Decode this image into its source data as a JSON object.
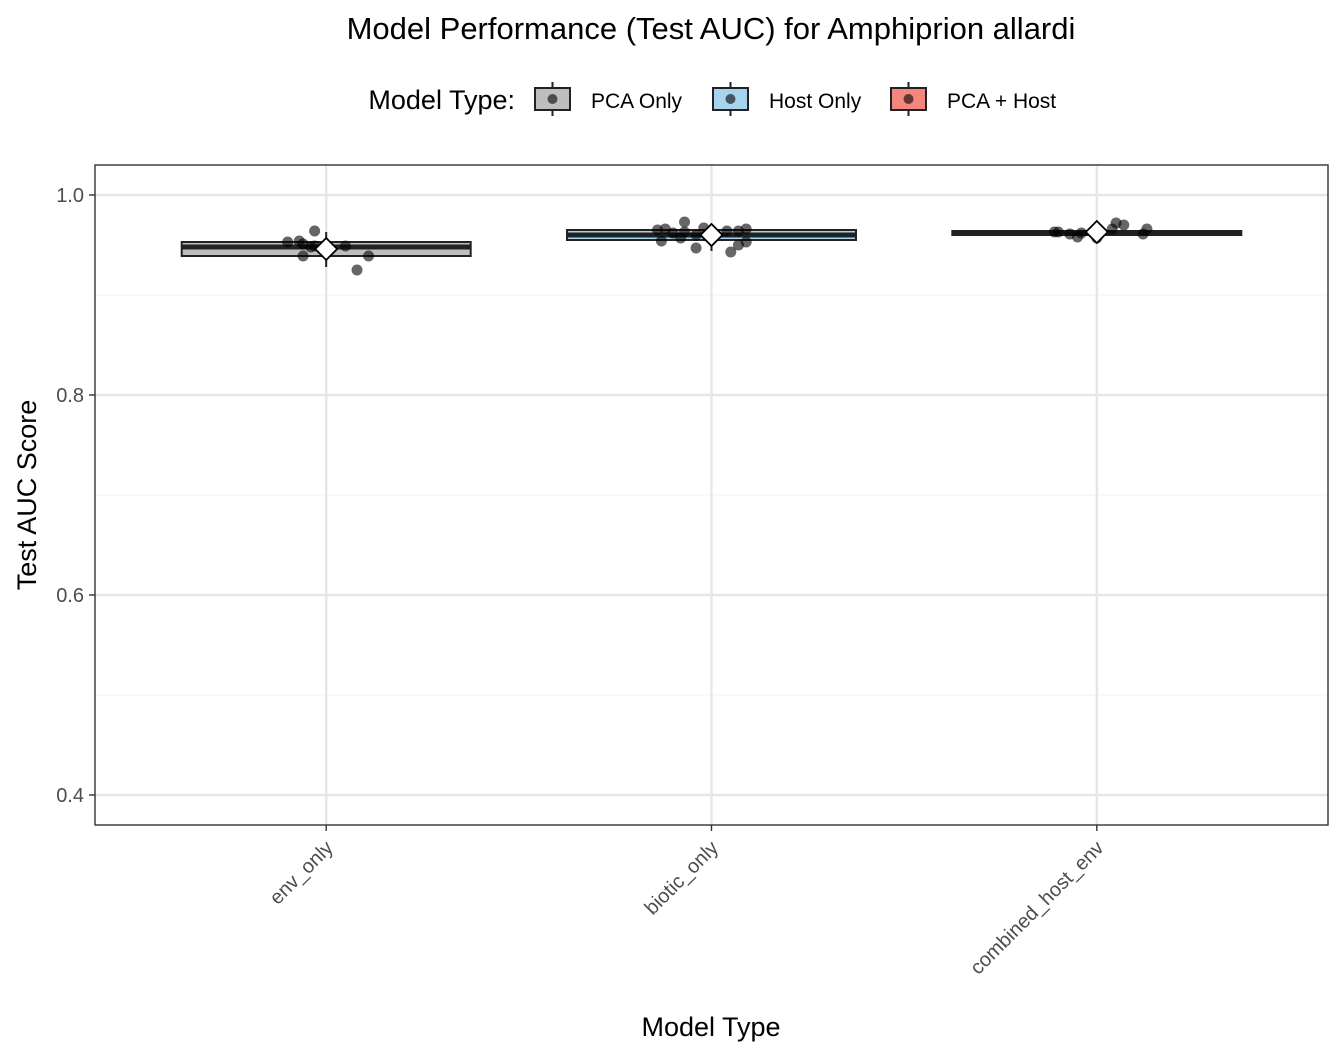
{
  "chart_data": {
    "type": "box",
    "title": "Model Performance (Test AUC) for Amphiprion allardi",
    "xlabel": "Model Type",
    "ylabel": "Test AUC Score",
    "ylim": [
      0.37,
      1.03
    ],
    "yticks": [
      0.4,
      0.6,
      0.8,
      1.0
    ],
    "ytick_labels": [
      "0.4",
      "0.6",
      "0.8",
      "1.0"
    ],
    "grid": true,
    "categories": [
      "env_only",
      "biotic_only",
      "combined_host_env"
    ],
    "legend": {
      "title": "Model Type:",
      "position": "top",
      "entries": [
        {
          "label": "PCA Only",
          "color": "#bebebe"
        },
        {
          "label": "Host Only",
          "color": "#a6d4ee"
        },
        {
          "label": "PCA + Host",
          "color": "#f4877d"
        }
      ]
    },
    "boxes": [
      {
        "category": "env_only",
        "color": "#bebebe",
        "q1": 0.939,
        "median": 0.948,
        "q3": 0.953,
        "whisker_low": 0.928,
        "whisker_high": 0.963,
        "mean": 0.946,
        "points": [
          {
            "dx": -0.1,
            "y": 0.953
          },
          {
            "dx": -0.07,
            "y": 0.954
          },
          {
            "dx": -0.06,
            "y": 0.951
          },
          {
            "dx": -0.06,
            "y": 0.939
          },
          {
            "dx": -0.04,
            "y": 0.948
          },
          {
            "dx": -0.03,
            "y": 0.949
          },
          {
            "dx": -0.03,
            "y": 0.964
          },
          {
            "dx": 0.05,
            "y": 0.949
          },
          {
            "dx": 0.08,
            "y": 0.925
          },
          {
            "dx": 0.11,
            "y": 0.939
          }
        ]
      },
      {
        "category": "biotic_only",
        "color": "#a6d4ee",
        "q1": 0.955,
        "median": 0.96,
        "q3": 0.965,
        "whisker_low": 0.944,
        "whisker_high": 0.969,
        "mean": 0.96,
        "points": [
          {
            "dx": -0.14,
            "y": 0.965
          },
          {
            "dx": -0.13,
            "y": 0.954
          },
          {
            "dx": -0.12,
            "y": 0.966
          },
          {
            "dx": -0.1,
            "y": 0.962
          },
          {
            "dx": -0.08,
            "y": 0.957
          },
          {
            "dx": -0.07,
            "y": 0.963
          },
          {
            "dx": -0.07,
            "y": 0.973
          },
          {
            "dx": -0.04,
            "y": 0.96
          },
          {
            "dx": -0.04,
            "y": 0.947
          },
          {
            "dx": -0.02,
            "y": 0.967
          },
          {
            "dx": 0.01,
            "y": 0.961
          },
          {
            "dx": 0.04,
            "y": 0.964
          },
          {
            "dx": 0.05,
            "y": 0.943
          },
          {
            "dx": 0.07,
            "y": 0.964
          },
          {
            "dx": 0.07,
            "y": 0.95
          },
          {
            "dx": 0.09,
            "y": 0.966
          },
          {
            "dx": 0.09,
            "y": 0.953
          }
        ]
      },
      {
        "category": "combined_host_env",
        "color": "#f4877d",
        "q1": 0.96,
        "median": 0.962,
        "q3": 0.964,
        "whisker_low": 0.958,
        "whisker_high": 0.965,
        "mean": 0.963,
        "points": [
          {
            "dx": -0.11,
            "y": 0.963
          },
          {
            "dx": -0.1,
            "y": 0.963
          },
          {
            "dx": -0.07,
            "y": 0.961
          },
          {
            "dx": -0.05,
            "y": 0.958
          },
          {
            "dx": -0.04,
            "y": 0.962
          },
          {
            "dx": 0.0,
            "y": 0.957
          },
          {
            "dx": 0.04,
            "y": 0.966
          },
          {
            "dx": 0.05,
            "y": 0.972
          },
          {
            "dx": 0.07,
            "y": 0.97
          },
          {
            "dx": 0.12,
            "y": 0.961
          },
          {
            "dx": 0.13,
            "y": 0.966
          }
        ]
      }
    ]
  }
}
